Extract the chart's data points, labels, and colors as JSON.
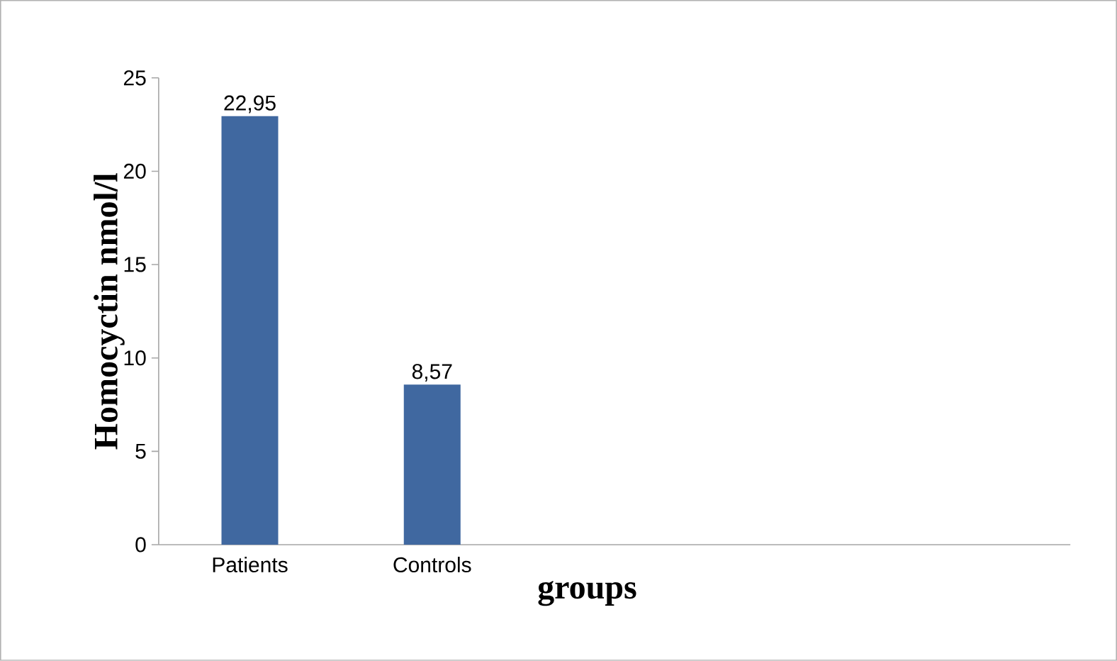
{
  "chart_data": {
    "type": "bar",
    "xlabel": "groups",
    "ylabel": "Homocyctin  nmol/l",
    "categories": [
      "Patients",
      "Controls",
      null,
      null,
      null
    ],
    "values": [
      22.95,
      8.57,
      null,
      null,
      null
    ],
    "value_labels": [
      "22,95",
      "8,57",
      null,
      null,
      null
    ],
    "color": "#4068a0",
    "ylim": [
      0,
      25
    ],
    "yticks": [
      0,
      5,
      10,
      15,
      20,
      25
    ]
  }
}
